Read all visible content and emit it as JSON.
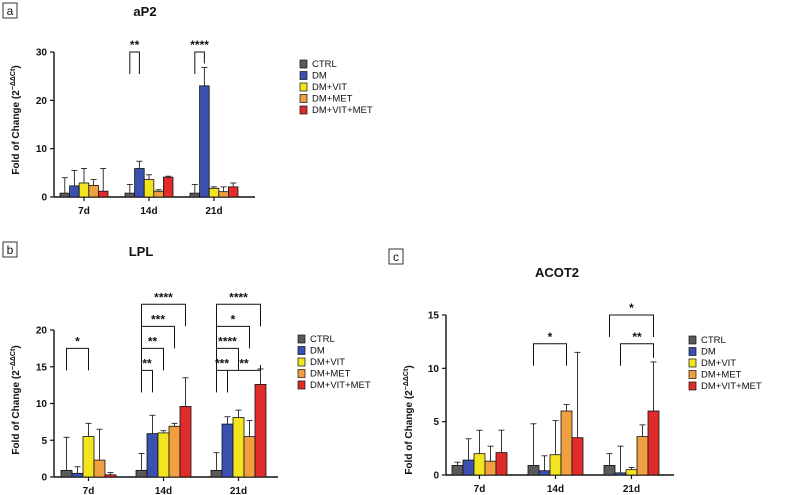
{
  "colors": {
    "CTRL": "#5a5a5a",
    "DM": "#3b50b0",
    "DM+VIT": "#f2e51f",
    "DM+MET": "#f0a040",
    "DM+VIT+MET": "#e02b2b"
  },
  "chart_data": [
    {
      "panel": "a",
      "type": "bar",
      "title": "aP2",
      "ylabel": "Fold of Change (2",
      "ylabel_sup": "−ΔΔCt",
      "ylim": [
        0,
        30
      ],
      "yticks": [
        "0",
        "10",
        "20",
        "30"
      ],
      "categories": [
        "7d",
        "14d",
        "21d"
      ],
      "series": [
        {
          "name": "CTRL",
          "values": [
            0.8,
            0.8,
            0.8
          ],
          "errors": [
            3.2,
            1.8,
            1.8
          ]
        },
        {
          "name": "DM",
          "values": [
            2.3,
            5.9,
            23.0
          ],
          "errors": [
            3.2,
            1.5,
            3.8
          ]
        },
        {
          "name": "DM+VIT",
          "values": [
            2.9,
            3.6,
            1.8
          ],
          "errors": [
            3.0,
            1.0,
            0.3
          ]
        },
        {
          "name": "DM+MET",
          "values": [
            2.4,
            1.2,
            1.1
          ],
          "errors": [
            1.2,
            0.3,
            1.0
          ]
        },
        {
          "name": "DM+VIT+MET",
          "values": [
            1.2,
            4.1,
            2.1
          ],
          "errors": [
            4.7,
            0.2,
            0.8
          ]
        }
      ],
      "significance": [
        {
          "group": "14d",
          "from": "CTRL",
          "to": "DM",
          "label": "**",
          "y": 30
        },
        {
          "group": "21d",
          "from": "CTRL",
          "to": "DM",
          "label": "****",
          "y": 30
        }
      ]
    },
    {
      "panel": "b",
      "type": "bar",
      "title": "LPL",
      "ylabel": "Fold of Change (2",
      "ylabel_sup": "−ΔΔCt",
      "ylim": [
        0,
        20
      ],
      "yticks": [
        "0",
        "5",
        "10",
        "15",
        "20"
      ],
      "categories": [
        "7d",
        "14d",
        "21d"
      ],
      "series": [
        {
          "name": "CTRL",
          "values": [
            0.9,
            0.9,
            0.9
          ],
          "errors": [
            4.5,
            2.3,
            2.4
          ]
        },
        {
          "name": "DM",
          "values": [
            0.5,
            5.9,
            7.2
          ],
          "errors": [
            0.9,
            2.5,
            1.0
          ]
        },
        {
          "name": "DM+VIT",
          "values": [
            5.5,
            6.0,
            8.1
          ],
          "errors": [
            1.8,
            0.3,
            1.0
          ]
        },
        {
          "name": "DM+MET",
          "values": [
            2.3,
            6.9,
            5.5
          ],
          "errors": [
            4.2,
            0.4,
            2.2
          ]
        },
        {
          "name": "DM+VIT+MET",
          "values": [
            0.3,
            9.6,
            12.6
          ],
          "errors": [
            0.3,
            3.9,
            2.1
          ]
        }
      ],
      "significance": [
        {
          "group": "7d",
          "from": "CTRL",
          "to": "DM+VIT",
          "label": "*",
          "y": 17.5
        },
        {
          "group": "14d",
          "from": "CTRL",
          "to": "DM",
          "label": "**",
          "y": 14.5
        },
        {
          "group": "14d",
          "from": "CTRL",
          "to": "DM+VIT",
          "label": "**",
          "y": 17.5
        },
        {
          "group": "14d",
          "from": "CTRL",
          "to": "DM+MET",
          "label": "***",
          "y": 20.5
        },
        {
          "group": "14d",
          "from": "CTRL",
          "to": "DM+VIT+MET",
          "label": "****",
          "y": 23.5
        },
        {
          "group": "21d",
          "from": "CTRL",
          "to": "DM",
          "label": "***",
          "y": 14.5
        },
        {
          "group": "21d",
          "from": "DM",
          "to": "DM+VIT+MET",
          "label": "**",
          "y": 14.5
        },
        {
          "group": "21d",
          "from": "CTRL",
          "to": "DM+VIT",
          "label": "****",
          "y": 17.5
        },
        {
          "group": "21d",
          "from": "CTRL",
          "to": "DM+MET",
          "label": "*",
          "y": 20.5
        },
        {
          "group": "21d",
          "from": "CTRL",
          "to": "DM+VIT+MET",
          "label": "****",
          "y": 23.5
        }
      ]
    },
    {
      "panel": "c",
      "type": "bar",
      "title": "ACOT2",
      "ylabel": "Fold of Change (2",
      "ylabel_sup": "−ΔΔCt",
      "ylim": [
        0,
        15
      ],
      "yticks": [
        "0",
        "5",
        "10",
        "15"
      ],
      "categories": [
        "7d",
        "14d",
        "21d"
      ],
      "series": [
        {
          "name": "CTRL",
          "values": [
            0.9,
            0.9,
            0.9
          ],
          "errors": [
            0.3,
            3.9,
            1.1
          ]
        },
        {
          "name": "DM",
          "values": [
            1.4,
            0.4,
            0.2
          ],
          "errors": [
            2.0,
            1.4,
            2.5
          ]
        },
        {
          "name": "DM+VIT",
          "values": [
            2.0,
            1.9,
            0.5
          ],
          "errors": [
            2.2,
            3.2,
            0.2
          ]
        },
        {
          "name": "DM+MET",
          "values": [
            1.3,
            6.0,
            3.6
          ],
          "errors": [
            1.4,
            0.6,
            1.1
          ]
        },
        {
          "name": "DM+VIT+MET",
          "values": [
            2.1,
            3.5,
            6.0
          ],
          "errors": [
            2.1,
            8.0,
            4.6
          ]
        }
      ],
      "significance": [
        {
          "group": "14d",
          "from": "CTRL",
          "to": "DM+MET",
          "label": "*",
          "y": 12.3
        },
        {
          "group": "21d",
          "from": "CTRL",
          "to": "DM+VIT+MET",
          "label": "*",
          "y": 15.0
        },
        {
          "group": "21d",
          "from": "DM",
          "to": "DM+VIT+MET",
          "label": "**",
          "y": 12.3
        }
      ]
    }
  ]
}
